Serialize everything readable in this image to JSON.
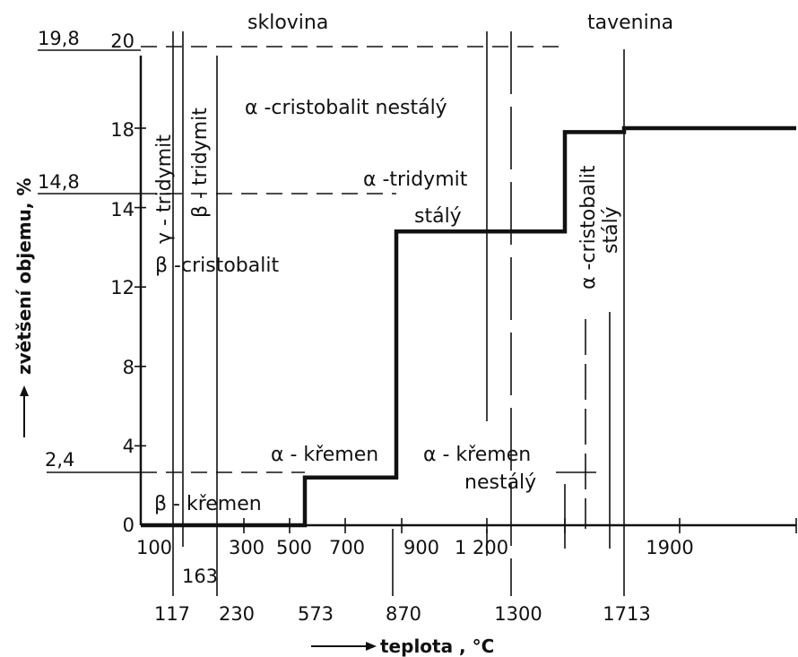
{
  "chart_data": {
    "type": "line",
    "xlabel": "teplota , °C",
    "ylabel": "zvětšení objemu, %",
    "y_ticks": [
      "0",
      "4",
      "8",
      "12",
      "14",
      "18",
      "20"
    ],
    "y_ref_labels": [
      "19,8",
      "14,8",
      "2,4"
    ],
    "x_ticks_top": [
      "100",
      "300",
      "500",
      "700",
      "900",
      "1 200",
      "1900"
    ],
    "x_ticks_bottom": [
      "117",
      "230",
      "573",
      "870",
      "1300",
      "1713"
    ],
    "x_extra_label": "163",
    "grid": false,
    "series": [
      {
        "name": "",
        "color": "#111111",
        "points": [
          [
            100,
            0
          ],
          [
            573,
            0
          ],
          [
            573,
            2.4
          ],
          [
            870,
            2.4
          ],
          [
            870,
            14.8
          ],
          [
            1470,
            14.8
          ],
          [
            1470,
            19.8
          ],
          [
            1713,
            19.8
          ],
          [
            1713,
            20
          ],
          [
            2150,
            20
          ]
        ]
      }
    ],
    "regions": [
      {
        "id": "sklovina",
        "text": "sklovina"
      },
      {
        "id": "tavenina",
        "text": "tavenina"
      },
      {
        "id": "alpha-cristobalit-nestaly",
        "text": "α -cristobalit nestálý"
      },
      {
        "id": "alpha-tridymit",
        "text": "α -tridymit"
      },
      {
        "id": "staly",
        "text": "stálý"
      },
      {
        "id": "beta-cristobalit",
        "text": "β -cristobalit"
      },
      {
        "id": "alpha-kremen",
        "text": "α - křemen"
      },
      {
        "id": "alpha-kremen-2",
        "text": "α - křemen"
      },
      {
        "id": "nestaly",
        "text": "nestálý"
      },
      {
        "id": "beta-kremen",
        "text": "β - křemen"
      },
      {
        "id": "gamma-tridymit",
        "text": "γ - tridymit"
      },
      {
        "id": "beta-tridymit",
        "text": "β - tridymit"
      },
      {
        "id": "alpha-cristobalit-v",
        "text": "α -cristobalit"
      },
      {
        "id": "staly-v",
        "text": "stálý"
      }
    ]
  }
}
